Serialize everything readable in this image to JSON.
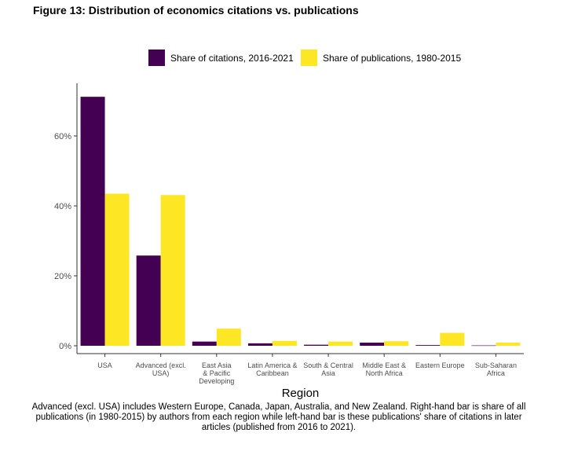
{
  "figure_title": "Figure 13: Distribution of economics citations vs. publications",
  "caption": "Advanced (excl. USA) includes Western Europe, Canada, Japan, Australia, and New Zealand. Right-hand bar is share of all publications (in 1980-2015) by authors from each region while left-hand bar is these publications' share of citations in later articles (published from 2016 to 2021).",
  "chart_data": {
    "type": "bar",
    "title": "Figure 13: Distribution of economics citations vs. publications",
    "xlabel": "Region",
    "ylabel": "",
    "ylim": [
      0,
      73.5
    ],
    "yticks": [
      0,
      20,
      40,
      60
    ],
    "ytick_labels": [
      "0%",
      "20%",
      "40%",
      "60%"
    ],
    "legend_position": "top",
    "categories": [
      "USA",
      "Advanced (excl.\nUSA)",
      "East Asia\n& Pacific\nDeveloping",
      "Latin America &\nCaribbean",
      "South & Central\nAsia",
      "Middle East &\nNorth Africa",
      "Eastern Europe",
      "Sub-Saharan\nAfrica"
    ],
    "series": [
      {
        "name": "Share of citations, 2016-2021",
        "color": "#440154",
        "values": [
          71.2,
          25.8,
          1.2,
          0.7,
          0.3,
          0.9,
          0.2,
          0.1
        ]
      },
      {
        "name": "Share of publications, 1980-2015",
        "color": "#FDE725",
        "values": [
          43.5,
          43.1,
          4.9,
          1.4,
          1.2,
          1.3,
          3.7,
          0.9
        ]
      }
    ]
  }
}
